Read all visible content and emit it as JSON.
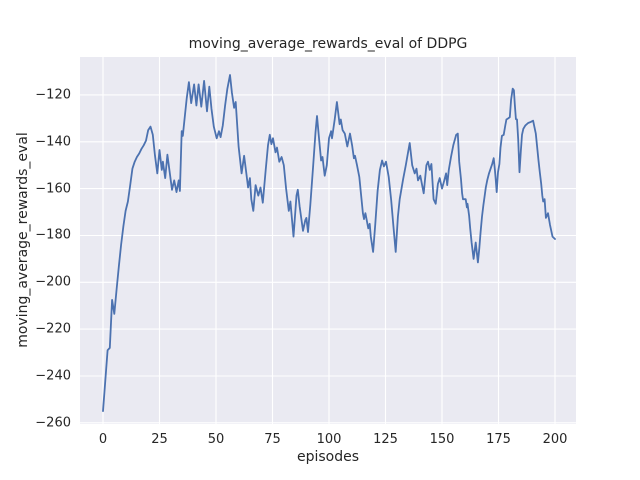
{
  "chart_data": {
    "type": "line",
    "title": "moving_average_rewards_eval of DDPG",
    "xlabel": "episodes",
    "ylabel": "moving_average_rewards_eval",
    "xlim": [
      -10.2,
      209.3
    ],
    "ylim": [
      -260.5,
      -103.8
    ],
    "xticks": [
      0,
      25,
      50,
      75,
      100,
      125,
      150,
      175,
      200
    ],
    "xtick_labels": [
      "0",
      "25",
      "50",
      "75",
      "100",
      "125",
      "150",
      "175",
      "200"
    ],
    "yticks": [
      -120,
      -140,
      -160,
      -180,
      -200,
      -220,
      -240,
      -260
    ],
    "ytick_labels": [
      "−120",
      "−140",
      "−160",
      "−180",
      "−200",
      "−220",
      "−240",
      "−260"
    ],
    "grid": true,
    "legend_position": "none",
    "panel_background": "#eaeaf2",
    "grid_color": "#ffffff",
    "line_color": "#4c72b0",
    "series": [
      {
        "name": "moving_average_rewards_eval",
        "x": [
          0,
          1,
          2,
          3,
          4,
          5,
          6,
          7,
          8,
          9,
          10,
          11,
          12,
          13,
          14,
          15,
          16,
          17,
          18,
          19,
          20,
          21,
          22,
          23,
          24,
          25,
          26,
          26.5,
          27.5,
          28.5,
          29.5,
          30.5,
          31.5,
          32.5,
          33.5,
          34,
          34.8,
          35.3,
          36.3,
          37,
          38,
          39,
          40.3,
          41.3,
          42.3,
          43.5,
          44.7,
          46,
          47,
          48,
          49,
          50.3,
          51.3,
          52,
          53,
          54,
          55,
          56.2,
          57,
          58,
          58.7,
          60,
          61.3,
          62.4,
          63.2,
          64.2,
          65,
          65.6,
          66.5,
          67.5,
          68.7,
          69.7,
          70.7,
          72,
          73,
          73.8,
          74.5,
          75.2,
          76.3,
          77,
          78,
          79,
          80,
          81,
          82.2,
          82.9,
          84.3,
          85.6,
          86.2,
          87,
          88.5,
          89.5,
          90,
          90.7,
          91.7,
          93,
          94,
          94.7,
          95.5,
          96.5,
          97.1,
          98.1,
          99,
          100,
          100.9,
          101.3,
          102.5,
          103.5,
          104.7,
          105.2,
          106,
          107,
          108.1,
          109.3,
          110.2,
          111,
          111.5,
          112.4,
          113.4,
          114,
          115,
          115.5,
          116.1,
          117.4,
          118,
          118.5,
          119.5,
          120.5,
          121.5,
          122.5,
          123.5,
          124.3,
          125.2,
          126.4,
          127.5,
          128.5,
          129.5,
          130.5,
          131.3,
          132.8,
          134,
          135.7,
          136.8,
          137.9,
          138.7,
          139.4,
          140.4,
          141.9,
          143.1,
          143.8,
          144.6,
          145.3,
          146.3,
          147.2,
          148.2,
          149,
          150,
          151,
          151.8,
          152.3,
          153,
          154,
          155,
          156.3,
          157,
          157.6,
          158.4,
          158.9,
          159.3,
          160.5,
          161,
          161.3,
          162,
          162.5,
          163.1,
          164,
          164.9,
          165.9,
          166.5,
          167.1,
          167.7,
          168.3,
          168.9,
          169.4,
          170,
          170.8,
          171.5,
          172.2,
          172.9,
          173.4,
          173.8,
          174.2,
          174.8,
          175.4,
          175.9,
          176.5,
          177.3,
          178,
          178.5,
          179.3,
          180,
          180.6,
          181.3,
          181.8,
          182.2,
          182.7,
          183.2,
          183.7,
          184.3,
          184.9,
          185.4,
          186,
          186.9,
          188.1,
          189.3,
          190.3,
          191.5,
          192.1,
          192.7,
          193.3,
          193.9,
          194.4,
          194.8,
          195.4,
          196,
          196.9,
          197.8,
          198.9,
          200
        ],
        "y": [
          -255,
          -242,
          -229,
          -228,
          -207.5,
          -213.5,
          -203,
          -193,
          -184,
          -176,
          -169.5,
          -165.5,
          -158.5,
          -151.5,
          -148.5,
          -146.5,
          -145,
          -143,
          -141.5,
          -139.5,
          -135,
          -133.5,
          -137,
          -146,
          -153.5,
          -143.5,
          -152,
          -148.5,
          -155.5,
          -145.5,
          -153,
          -160.5,
          -156.5,
          -161.5,
          -156.5,
          -161,
          -135.5,
          -137.5,
          -128,
          -121.5,
          -114.5,
          -123.5,
          -115.5,
          -124.5,
          -115.5,
          -125,
          -114,
          -127,
          -116.5,
          -126,
          -133.5,
          -138.5,
          -135.5,
          -138,
          -133,
          -124.5,
          -117.5,
          -111.5,
          -119,
          -125.5,
          -123,
          -142,
          -153.5,
          -146,
          -152,
          -159.5,
          -155.5,
          -164.5,
          -169.5,
          -158.5,
          -163,
          -159.5,
          -166,
          -152,
          -141.5,
          -137,
          -141,
          -138.5,
          -144.5,
          -142.5,
          -148.5,
          -146.5,
          -150,
          -160,
          -169.5,
          -165.5,
          -180.5,
          -163,
          -160.5,
          -167.5,
          -178,
          -173.5,
          -172.5,
          -178.5,
          -167,
          -150,
          -136,
          -129,
          -137.5,
          -148,
          -146.5,
          -154.5,
          -150,
          -138.5,
          -135.5,
          -138.5,
          -130.5,
          -123,
          -132.5,
          -130.5,
          -135,
          -136.5,
          -142,
          -136.5,
          -141.5,
          -147,
          -146,
          -150,
          -155,
          -161,
          -170.5,
          -173,
          -170.5,
          -177,
          -175,
          -180.5,
          -187,
          -175,
          -161,
          -152,
          -148,
          -150.5,
          -148.5,
          -155,
          -165,
          -176,
          -187,
          -172,
          -164.5,
          -156,
          -150,
          -140.5,
          -150,
          -153.5,
          -151.5,
          -156.5,
          -154.5,
          -162,
          -150,
          -148.5,
          -152,
          -149.5,
          -164.5,
          -166.5,
          -158,
          -155.5,
          -160,
          -156.5,
          -153.5,
          -158.5,
          -152,
          -146.5,
          -141.5,
          -137,
          -136.5,
          -148.5,
          -156,
          -162,
          -164.5,
          -164.5,
          -168,
          -166.5,
          -171.5,
          -177,
          -183,
          -190,
          -183,
          -191.5,
          -185.5,
          -178.5,
          -172,
          -167,
          -163,
          -159.5,
          -156.5,
          -153.5,
          -151.5,
          -149.5,
          -147,
          -152,
          -156.5,
          -161.5,
          -153,
          -149.5,
          -142.5,
          -137.5,
          -137,
          -133,
          -130.5,
          -130,
          -129.5,
          -122,
          -117.3,
          -118,
          -124,
          -130.3,
          -130.5,
          -139,
          -153,
          -143.5,
          -137,
          -134.5,
          -133,
          -132,
          -131.5,
          -131,
          -136.5,
          -142,
          -148,
          -153,
          -158,
          -163,
          -165.5,
          -164.5,
          -172.5,
          -170.5,
          -175.5,
          -180.5,
          -181.5
        ]
      }
    ]
  }
}
